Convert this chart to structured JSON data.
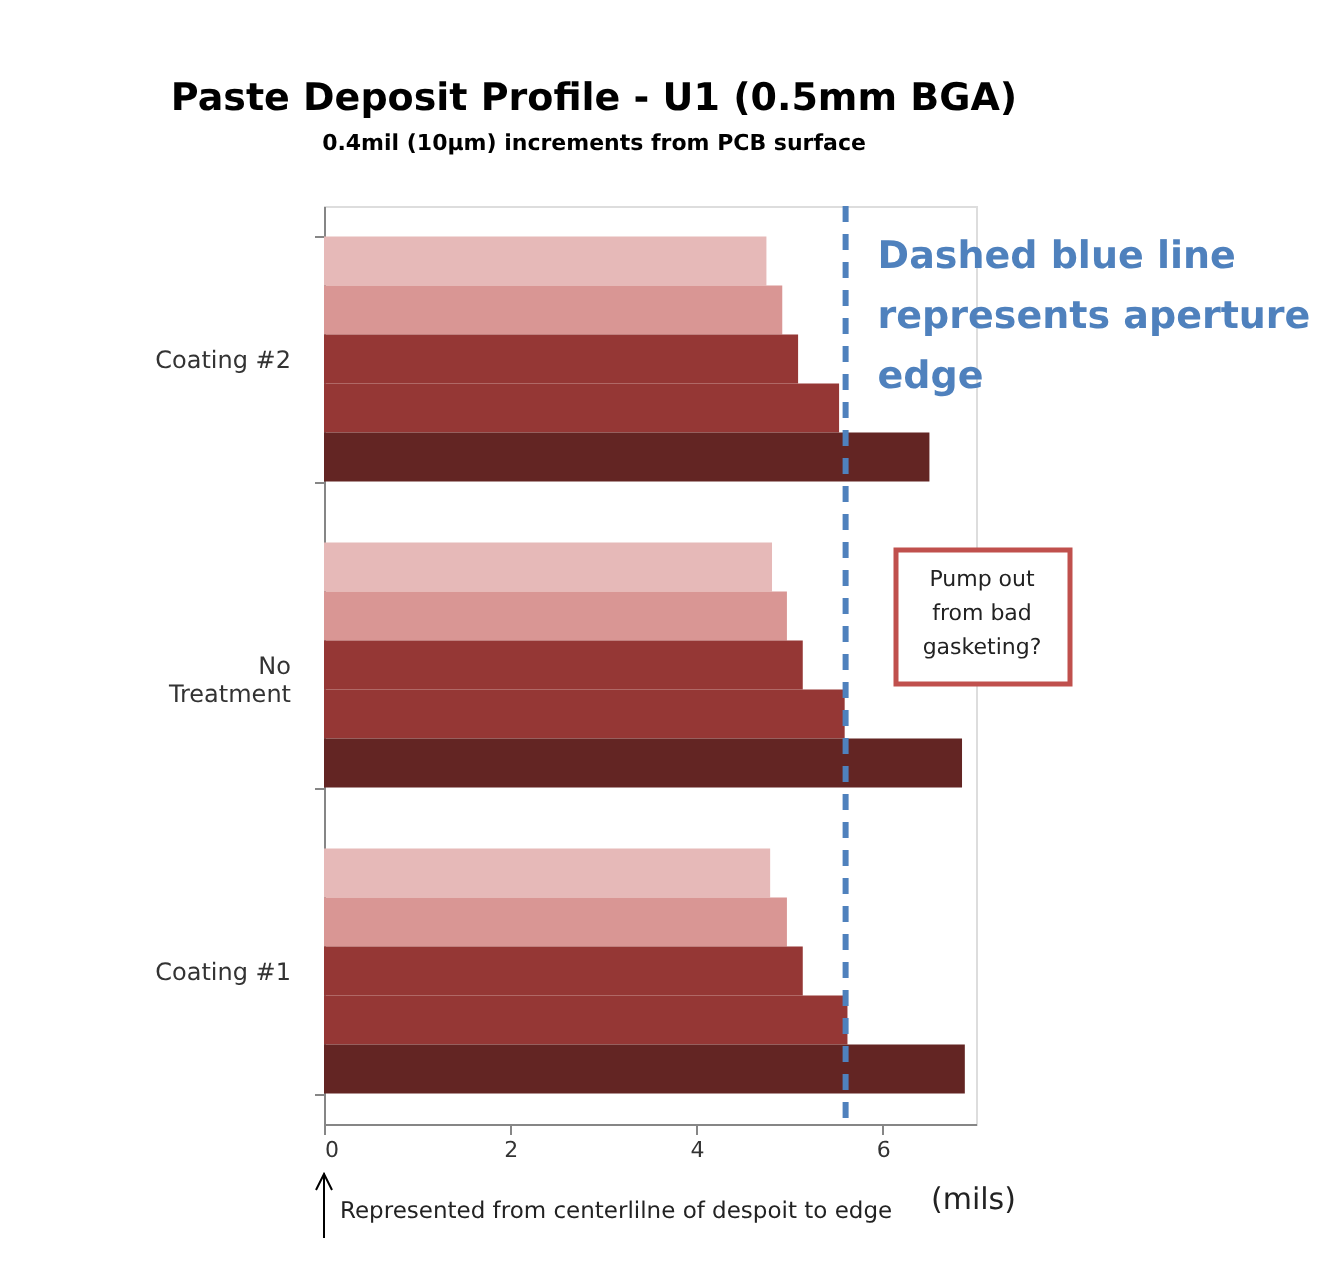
{
  "chart_data": {
    "type": "bar",
    "orientation": "horizontal",
    "title": "Paste Deposit Profile - U1 (0.5mm BGA)",
    "subtitle": "0.4mil (10µm) increments from PCB surface",
    "xlabel": "(mils)",
    "categories": [
      "Coating #2",
      "No Treatment",
      "Coating #1"
    ],
    "series": [
      {
        "color": "#e6b9b8",
        "values": [
          4.75,
          4.81,
          4.79
        ]
      },
      {
        "color": "#d99694",
        "values": [
          4.92,
          4.97,
          4.97
        ]
      },
      {
        "color": "#953735",
        "values": [
          5.09,
          5.14,
          5.14
        ]
      },
      {
        "color": "#953735",
        "values": [
          5.53,
          5.59,
          5.62
        ]
      },
      {
        "color": "#632523",
        "values": [
          6.5,
          6.85,
          6.88
        ]
      }
    ],
    "xlim": [
      0,
      7
    ],
    "xticks": [
      0,
      2,
      4,
      6
    ],
    "grid": false,
    "legend": false,
    "ref_lines": [
      {
        "axis": "x",
        "value": 5.6,
        "label": "Dashed blue line represents aperture edge",
        "color": "#4f81bd",
        "line_style": "dashed"
      }
    ],
    "annotations": [
      "Pump out from bad gasketing?",
      "Represented from centerlilne of despoit to edge"
    ]
  }
}
